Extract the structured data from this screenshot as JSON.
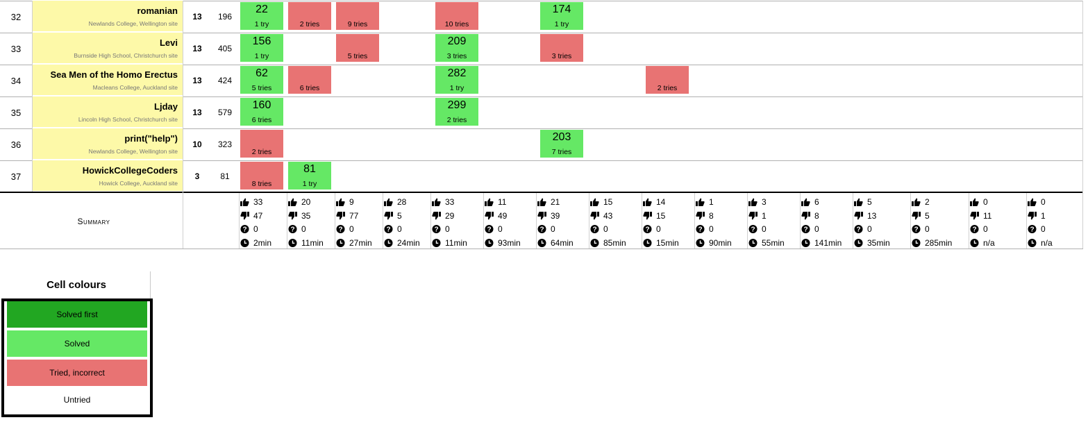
{
  "rows": [
    {
      "rank": "32",
      "team": "romanian",
      "affiliation": "Newlands College, Wellington site",
      "solved": "13",
      "penalty": "196",
      "cells": [
        {
          "col": 0,
          "status": "solved",
          "time": "22",
          "tries": "1 try"
        },
        {
          "col": 1,
          "status": "tried",
          "time": "",
          "tries": "2 tries"
        },
        {
          "col": 2,
          "status": "tried",
          "time": "",
          "tries": "9 tries"
        },
        {
          "col": 4,
          "status": "tried",
          "time": "",
          "tries": "10 tries"
        },
        {
          "col": 6,
          "status": "solved",
          "time": "174",
          "tries": "1 try"
        }
      ]
    },
    {
      "rank": "33",
      "team": "Levi",
      "affiliation": "Burnside High School, Christchurch site",
      "solved": "13",
      "penalty": "405",
      "cells": [
        {
          "col": 0,
          "status": "solved",
          "time": "156",
          "tries": "1 try"
        },
        {
          "col": 2,
          "status": "tried",
          "time": "",
          "tries": "5 tries"
        },
        {
          "col": 4,
          "status": "solved",
          "time": "209",
          "tries": "3 tries"
        },
        {
          "col": 6,
          "status": "tried",
          "time": "",
          "tries": "3 tries"
        }
      ]
    },
    {
      "rank": "34",
      "team": "Sea Men of the Homo Erectus",
      "affiliation": "Macleans College, Auckland site",
      "solved": "13",
      "penalty": "424",
      "cells": [
        {
          "col": 0,
          "status": "solved",
          "time": "62",
          "tries": "5 tries"
        },
        {
          "col": 1,
          "status": "tried",
          "time": "",
          "tries": "6 tries"
        },
        {
          "col": 4,
          "status": "solved",
          "time": "282",
          "tries": "1 try"
        },
        {
          "col": 8,
          "status": "tried",
          "time": "",
          "tries": "2 tries"
        }
      ]
    },
    {
      "rank": "35",
      "team": "Ljday",
      "affiliation": "Lincoln High School, Christchurch site",
      "solved": "13",
      "penalty": "579",
      "cells": [
        {
          "col": 0,
          "status": "solved",
          "time": "160",
          "tries": "6 tries"
        },
        {
          "col": 4,
          "status": "solved",
          "time": "299",
          "tries": "2 tries"
        }
      ]
    },
    {
      "rank": "36",
      "team": "print(\"help\")",
      "affiliation": "Newlands College, Wellington site",
      "solved": "10",
      "penalty": "323",
      "cells": [
        {
          "col": 0,
          "status": "tried",
          "time": "",
          "tries": "2 tries"
        },
        {
          "col": 6,
          "status": "solved",
          "time": "203",
          "tries": "7 tries"
        }
      ]
    },
    {
      "rank": "37",
      "team": "HowickCollegeCoders",
      "affiliation": "Howick College, Auckland site",
      "solved": "3",
      "penalty": "81",
      "cells": [
        {
          "col": 0,
          "status": "tried",
          "time": "",
          "tries": "8 tries"
        },
        {
          "col": 1,
          "status": "solved",
          "time": "81",
          "tries": "1 try"
        }
      ]
    }
  ],
  "summary": {
    "label": "Summary",
    "columns": [
      {
        "up": "33",
        "down": "47",
        "pending": "0",
        "time": "2min"
      },
      {
        "up": "20",
        "down": "35",
        "pending": "0",
        "time": "11min"
      },
      {
        "up": "9",
        "down": "77",
        "pending": "0",
        "time": "27min"
      },
      {
        "up": "28",
        "down": "5",
        "pending": "0",
        "time": "24min"
      },
      {
        "up": "33",
        "down": "29",
        "pending": "0",
        "time": "11min"
      },
      {
        "up": "11",
        "down": "49",
        "pending": "0",
        "time": "93min"
      },
      {
        "up": "21",
        "down": "39",
        "pending": "0",
        "time": "64min"
      },
      {
        "up": "15",
        "down": "43",
        "pending": "0",
        "time": "85min"
      },
      {
        "up": "14",
        "down": "15",
        "pending": "0",
        "time": "15min"
      },
      {
        "up": "1",
        "down": "8",
        "pending": "0",
        "time": "90min"
      },
      {
        "up": "3",
        "down": "1",
        "pending": "0",
        "time": "55min"
      },
      {
        "up": "6",
        "down": "8",
        "pending": "0",
        "time": "141min"
      },
      {
        "up": "5",
        "down": "13",
        "pending": "0",
        "time": "35min"
      },
      {
        "up": "2",
        "down": "5",
        "pending": "0",
        "time": "285min"
      },
      {
        "up": "0",
        "down": "11",
        "pending": "0",
        "time": "n/a"
      },
      {
        "up": "0",
        "down": "1",
        "pending": "0",
        "time": "n/a"
      }
    ]
  },
  "legend": {
    "title": "Cell colours",
    "items": [
      {
        "label": "Solved first",
        "color": "#22a722"
      },
      {
        "label": "Solved",
        "color": "#65e865"
      },
      {
        "label": "Tried, incorrect",
        "color": "#e87373"
      },
      {
        "label": "Untried",
        "color": "#ffffff"
      }
    ]
  },
  "colors": {
    "team_bg": "#fdf9a8",
    "solved": "#65e865",
    "tried": "#e87373",
    "solved_first": "#22a722"
  },
  "icons": {
    "up": "thumbs-up-icon",
    "down": "thumbs-down-icon",
    "pending": "question-circle-icon",
    "time": "clock-icon"
  }
}
